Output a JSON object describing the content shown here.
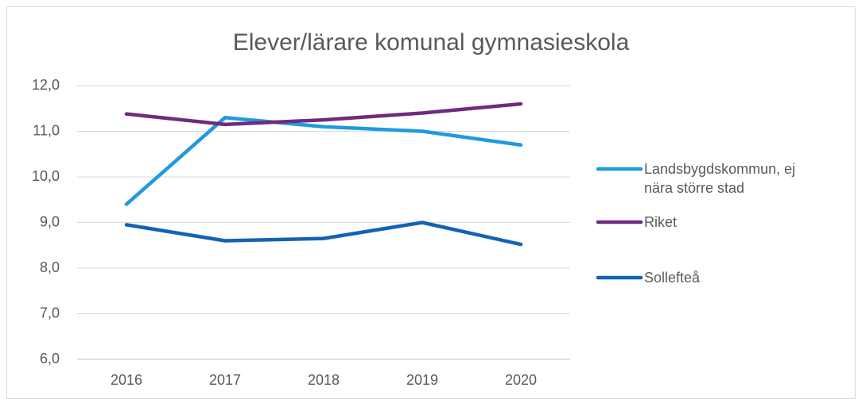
{
  "chart_data": {
    "type": "line",
    "title": "Elever/lärare komunal gymnasieskola",
    "categories": [
      "2016",
      "2017",
      "2018",
      "2019",
      "2020"
    ],
    "series": [
      {
        "name": "Landsbygdskommun, ej nära större stad",
        "color": "#1f9ade",
        "values": [
          9.4,
          11.3,
          11.1,
          11.0,
          10.7
        ]
      },
      {
        "name": "Riket",
        "color": "#6e2c7e",
        "values": [
          11.38,
          11.15,
          11.25,
          11.4,
          11.6
        ]
      },
      {
        "name": "Sollefteå",
        "color": "#1462b4",
        "values": [
          8.95,
          8.6,
          8.65,
          9.0,
          8.52
        ]
      }
    ],
    "ylim": [
      6,
      12
    ],
    "yticks": [
      {
        "value": 6,
        "label": "6,0"
      },
      {
        "value": 7,
        "label": "7,0"
      },
      {
        "value": 8,
        "label": "8,0"
      },
      {
        "value": 9,
        "label": "9,0"
      },
      {
        "value": 10,
        "label": "10,0"
      },
      {
        "value": 11,
        "label": "11,0"
      },
      {
        "value": 12,
        "label": "12,0"
      }
    ],
    "grid": true,
    "legend": "right"
  }
}
